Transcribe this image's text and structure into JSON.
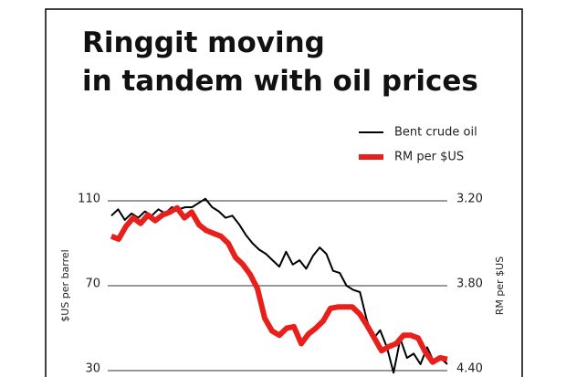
{
  "chart_data": {
    "type": "line",
    "title": "Ringgit moving in tandem with oil prices",
    "ylabel": "$US per barrel",
    "y2label": "RM per $US",
    "ylim": [
      30,
      110
    ],
    "yticks": [
      30,
      70,
      110
    ],
    "y2lim": [
      4.4,
      3.2
    ],
    "y2ticks": [
      {
        "value": 3.2,
        "label": "3.20"
      },
      {
        "value": 3.8,
        "label": "3.80"
      },
      {
        "value": 4.4,
        "label": "4.40"
      }
    ],
    "grid": true,
    "legend": "top-right",
    "series": [
      {
        "name": "Bent crude oil",
        "color": "#000000",
        "values": [
          103,
          106,
          101,
          104,
          102,
          105,
          103,
          106,
          104,
          107,
          106,
          107,
          107,
          109,
          111,
          107,
          105,
          102,
          103,
          99,
          94,
          90,
          87,
          85,
          82,
          79,
          86,
          80,
          82,
          78,
          84,
          88,
          85,
          77,
          76,
          70,
          68,
          67,
          54,
          45,
          49,
          41,
          29,
          45,
          36,
          38,
          33,
          41,
          34,
          36,
          33
        ]
      },
      {
        "name": "RM per $US",
        "color": "#e8201c",
        "axis": "y2",
        "values": [
          3.45,
          3.47,
          3.38,
          3.32,
          3.36,
          3.3,
          3.34,
          3.3,
          3.28,
          3.25,
          3.32,
          3.28,
          3.37,
          3.41,
          3.43,
          3.45,
          3.5,
          3.6,
          3.65,
          3.72,
          3.82,
          4.03,
          4.12,
          4.15,
          4.1,
          4.09,
          4.21,
          4.14,
          4.1,
          4.05,
          3.96,
          3.95,
          3.95,
          3.95,
          4.0,
          4.08,
          4.17,
          4.26,
          4.23,
          4.21,
          4.15,
          4.15,
          4.17,
          4.27,
          4.34,
          4.31,
          4.32
        ]
      }
    ]
  }
}
